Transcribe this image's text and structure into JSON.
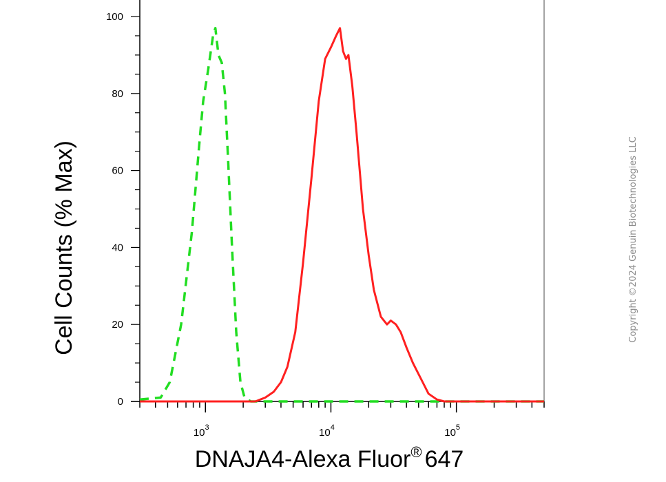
{
  "chart_data": {
    "type": "line",
    "xlabel": "DNAJA4-Alexa Fluor",
    "xlabel_sup": "®",
    "xlabel_suffix": "647",
    "ylabel": "Cell Counts (% Max)",
    "x_scale": "log",
    "xlim": [
      300,
      500000
    ],
    "ylim": [
      0,
      100
    ],
    "y_ticks": [
      0,
      20,
      40,
      60,
      80,
      100
    ],
    "y_tick_labels": [
      "0",
      "20",
      "40",
      "60",
      "80",
      "100"
    ],
    "x_ticks": [
      1000,
      10000,
      100000
    ],
    "x_tick_labels": [
      {
        "base": "10",
        "exp": "3"
      },
      {
        "base": "10",
        "exp": "4"
      },
      {
        "base": "10",
        "exp": "5"
      }
    ],
    "grid": false,
    "legend": "none",
    "series": [
      {
        "style": "dashed",
        "color": "#22dd22",
        "points": [
          [
            300,
            0.5
          ],
          [
            440,
            1
          ],
          [
            520,
            5
          ],
          [
            640,
            20
          ],
          [
            780,
            44
          ],
          [
            900,
            68
          ],
          [
            960,
            78
          ],
          [
            1050,
            86
          ],
          [
            1150,
            95
          ],
          [
            1200,
            97
          ],
          [
            1270,
            90
          ],
          [
            1350,
            88
          ],
          [
            1430,
            80
          ],
          [
            1520,
            62
          ],
          [
            1630,
            40
          ],
          [
            1760,
            18
          ],
          [
            1900,
            5
          ],
          [
            2050,
            1
          ],
          [
            2300,
            0
          ],
          [
            10000,
            0
          ],
          [
            500000,
            0
          ]
        ]
      },
      {
        "style": "solid",
        "color": "#ff2020",
        "points": [
          [
            300,
            0
          ],
          [
            2500,
            0
          ],
          [
            3000,
            1
          ],
          [
            3500,
            2.5
          ],
          [
            4000,
            5
          ],
          [
            4500,
            9
          ],
          [
            5200,
            18
          ],
          [
            6000,
            36
          ],
          [
            7000,
            58
          ],
          [
            8000,
            78
          ],
          [
            9000,
            89
          ],
          [
            10000,
            92
          ],
          [
            11000,
            95
          ],
          [
            11800,
            97
          ],
          [
            12500,
            91
          ],
          [
            13200,
            89
          ],
          [
            13800,
            90
          ],
          [
            14800,
            82
          ],
          [
            16000,
            70
          ],
          [
            18000,
            50
          ],
          [
            20000,
            38
          ],
          [
            22000,
            29
          ],
          [
            25000,
            22
          ],
          [
            28000,
            20
          ],
          [
            30000,
            21
          ],
          [
            33000,
            20
          ],
          [
            36000,
            18
          ],
          [
            40000,
            14
          ],
          [
            45000,
            10
          ],
          [
            52000,
            6
          ],
          [
            60000,
            2
          ],
          [
            70000,
            0.5
          ],
          [
            80000,
            0
          ],
          [
            500000,
            0
          ]
        ]
      }
    ]
  },
  "copyright": "Copyright ©2024 Genuin Biotechnologies LLC"
}
